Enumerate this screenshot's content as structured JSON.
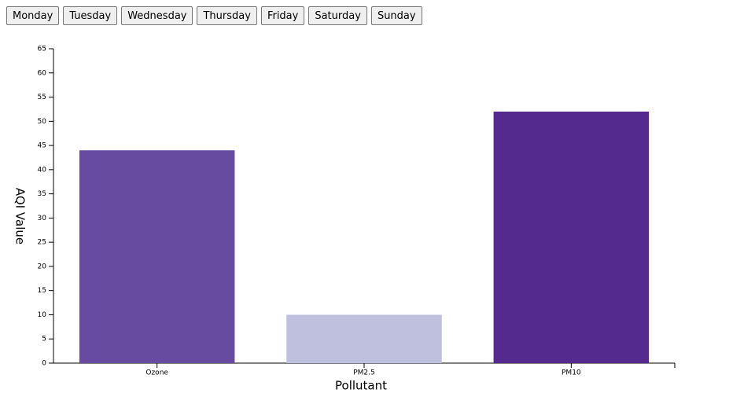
{
  "buttons": [
    "Monday",
    "Tuesday",
    "Wednesday",
    "Thursday",
    "Friday",
    "Saturday",
    "Sunday"
  ],
  "chart_data": {
    "type": "bar",
    "x_label": "Pollutant",
    "y_label": "AQI Value",
    "categories": [
      "Ozone",
      "PM2.5",
      "PM10"
    ],
    "values": [
      44,
      10,
      52
    ],
    "colors": [
      "#664ba0",
      "#bfc0de",
      "#552a8e"
    ],
    "ylim": [
      0,
      65
    ],
    "yticks": [
      0,
      5,
      10,
      15,
      20,
      25,
      30,
      35,
      40,
      45,
      50,
      55,
      60,
      65
    ]
  }
}
